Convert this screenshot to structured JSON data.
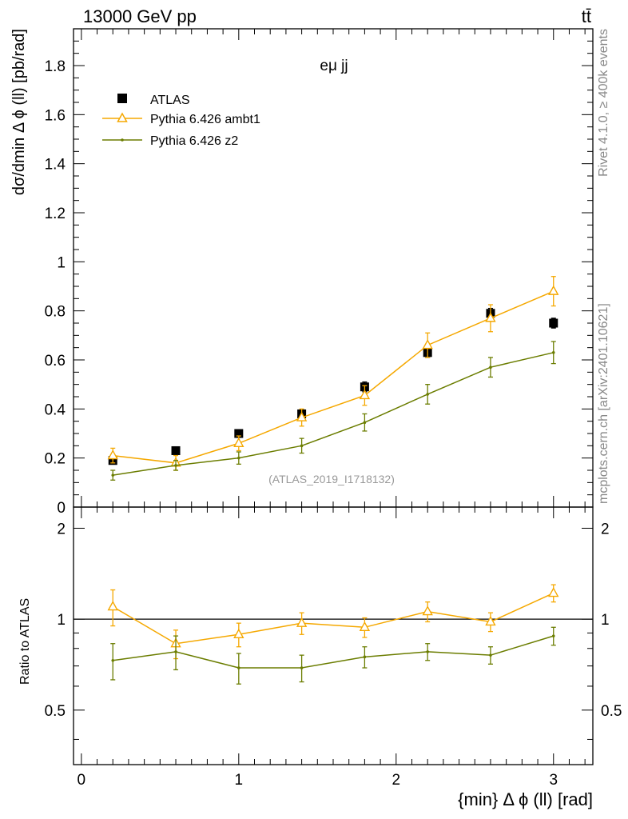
{
  "header": {
    "energy_label": "13000 GeV pp",
    "process_label": "tt̄"
  },
  "side_labels": {
    "rivet": "Rivet 4.1.0, ≥ 400k events",
    "source": "mcplots.cern.ch [arXiv:2401.10621]"
  },
  "chart_data": [
    {
      "type": "line",
      "panel": "main",
      "title": "eμ jj",
      "analysis_id": "(ATLAS_2019_I1718132)",
      "xlabel": "{min} Δ ϕ (ll) [rad]",
      "ylabel": "dσ/dmin Δ ϕ (ll) [pb/rad]",
      "xlim": [
        -0.05,
        3.25
      ],
      "ylim": [
        0,
        1.95
      ],
      "yticks": [
        0,
        0.2,
        0.4,
        0.6,
        0.8,
        1,
        1.2,
        1.4,
        1.6,
        1.8
      ],
      "ytick_labels": [
        "0",
        "0.2",
        "0.4",
        "0.6",
        "0.8",
        "1",
        "1.2",
        "1.4",
        "1.6",
        "1.8"
      ],
      "x": [
        0.2,
        0.6,
        1.0,
        1.4,
        1.8,
        2.2,
        2.6,
        3.0
      ],
      "legend_position": "top-left",
      "series": [
        {
          "name": "ATLAS",
          "style": "markers",
          "marker": "square",
          "color": "#000000",
          "values": [
            0.19,
            0.23,
            0.3,
            0.38,
            0.49,
            0.63,
            0.79,
            0.75
          ],
          "errors": [
            0.01,
            0.01,
            0.01,
            0.01,
            0.02,
            0.02,
            0.02,
            0.02
          ]
        },
        {
          "name": "Pythia 6.426 ambt1",
          "style": "line",
          "marker": "triangle",
          "color": "#f5a800",
          "values": [
            0.21,
            0.18,
            0.26,
            0.365,
            0.455,
            0.66,
            0.77,
            0.88
          ],
          "errors": [
            0.03,
            0.03,
            0.03,
            0.035,
            0.04,
            0.05,
            0.055,
            0.06
          ]
        },
        {
          "name": "Pythia 6.426 z2",
          "style": "line",
          "marker": "dot",
          "color": "#6b7d00",
          "values": [
            0.13,
            0.17,
            0.2,
            0.25,
            0.345,
            0.46,
            0.57,
            0.63
          ],
          "errors": [
            0.02,
            0.02,
            0.025,
            0.03,
            0.035,
            0.04,
            0.04,
            0.045
          ]
        }
      ]
    },
    {
      "type": "line",
      "panel": "ratio",
      "ylabel": "Ratio to ATLAS",
      "xlabel": "{min} Δ ϕ (ll) [rad]",
      "xlim": [
        -0.05,
        3.25
      ],
      "ylim": [
        0.33,
        2.35
      ],
      "yticks": [
        0.5,
        1,
        2
      ],
      "ytick_labels": [
        "0.5",
        "1",
        "2"
      ],
      "xticks": [
        0,
        1,
        2,
        3
      ],
      "xtick_labels": [
        "0",
        "1",
        "2",
        "3"
      ],
      "reference_line": 1,
      "x": [
        0.2,
        0.6,
        1.0,
        1.4,
        1.8,
        2.2,
        2.6,
        3.0
      ],
      "series": [
        {
          "name": "Pythia 6.426 ambt1",
          "color": "#f5a800",
          "marker": "triangle",
          "values": [
            1.1,
            0.83,
            0.89,
            0.97,
            0.94,
            1.06,
            0.98,
            1.22
          ],
          "errors": [
            0.15,
            0.09,
            0.08,
            0.08,
            0.07,
            0.08,
            0.07,
            0.08
          ]
        },
        {
          "name": "Pythia 6.426 z2",
          "color": "#6b7d00",
          "marker": "dot",
          "values": [
            0.73,
            0.78,
            0.69,
            0.69,
            0.75,
            0.78,
            0.76,
            0.88
          ],
          "errors": [
            0.1,
            0.1,
            0.08,
            0.07,
            0.06,
            0.05,
            0.05,
            0.06
          ]
        }
      ]
    }
  ]
}
